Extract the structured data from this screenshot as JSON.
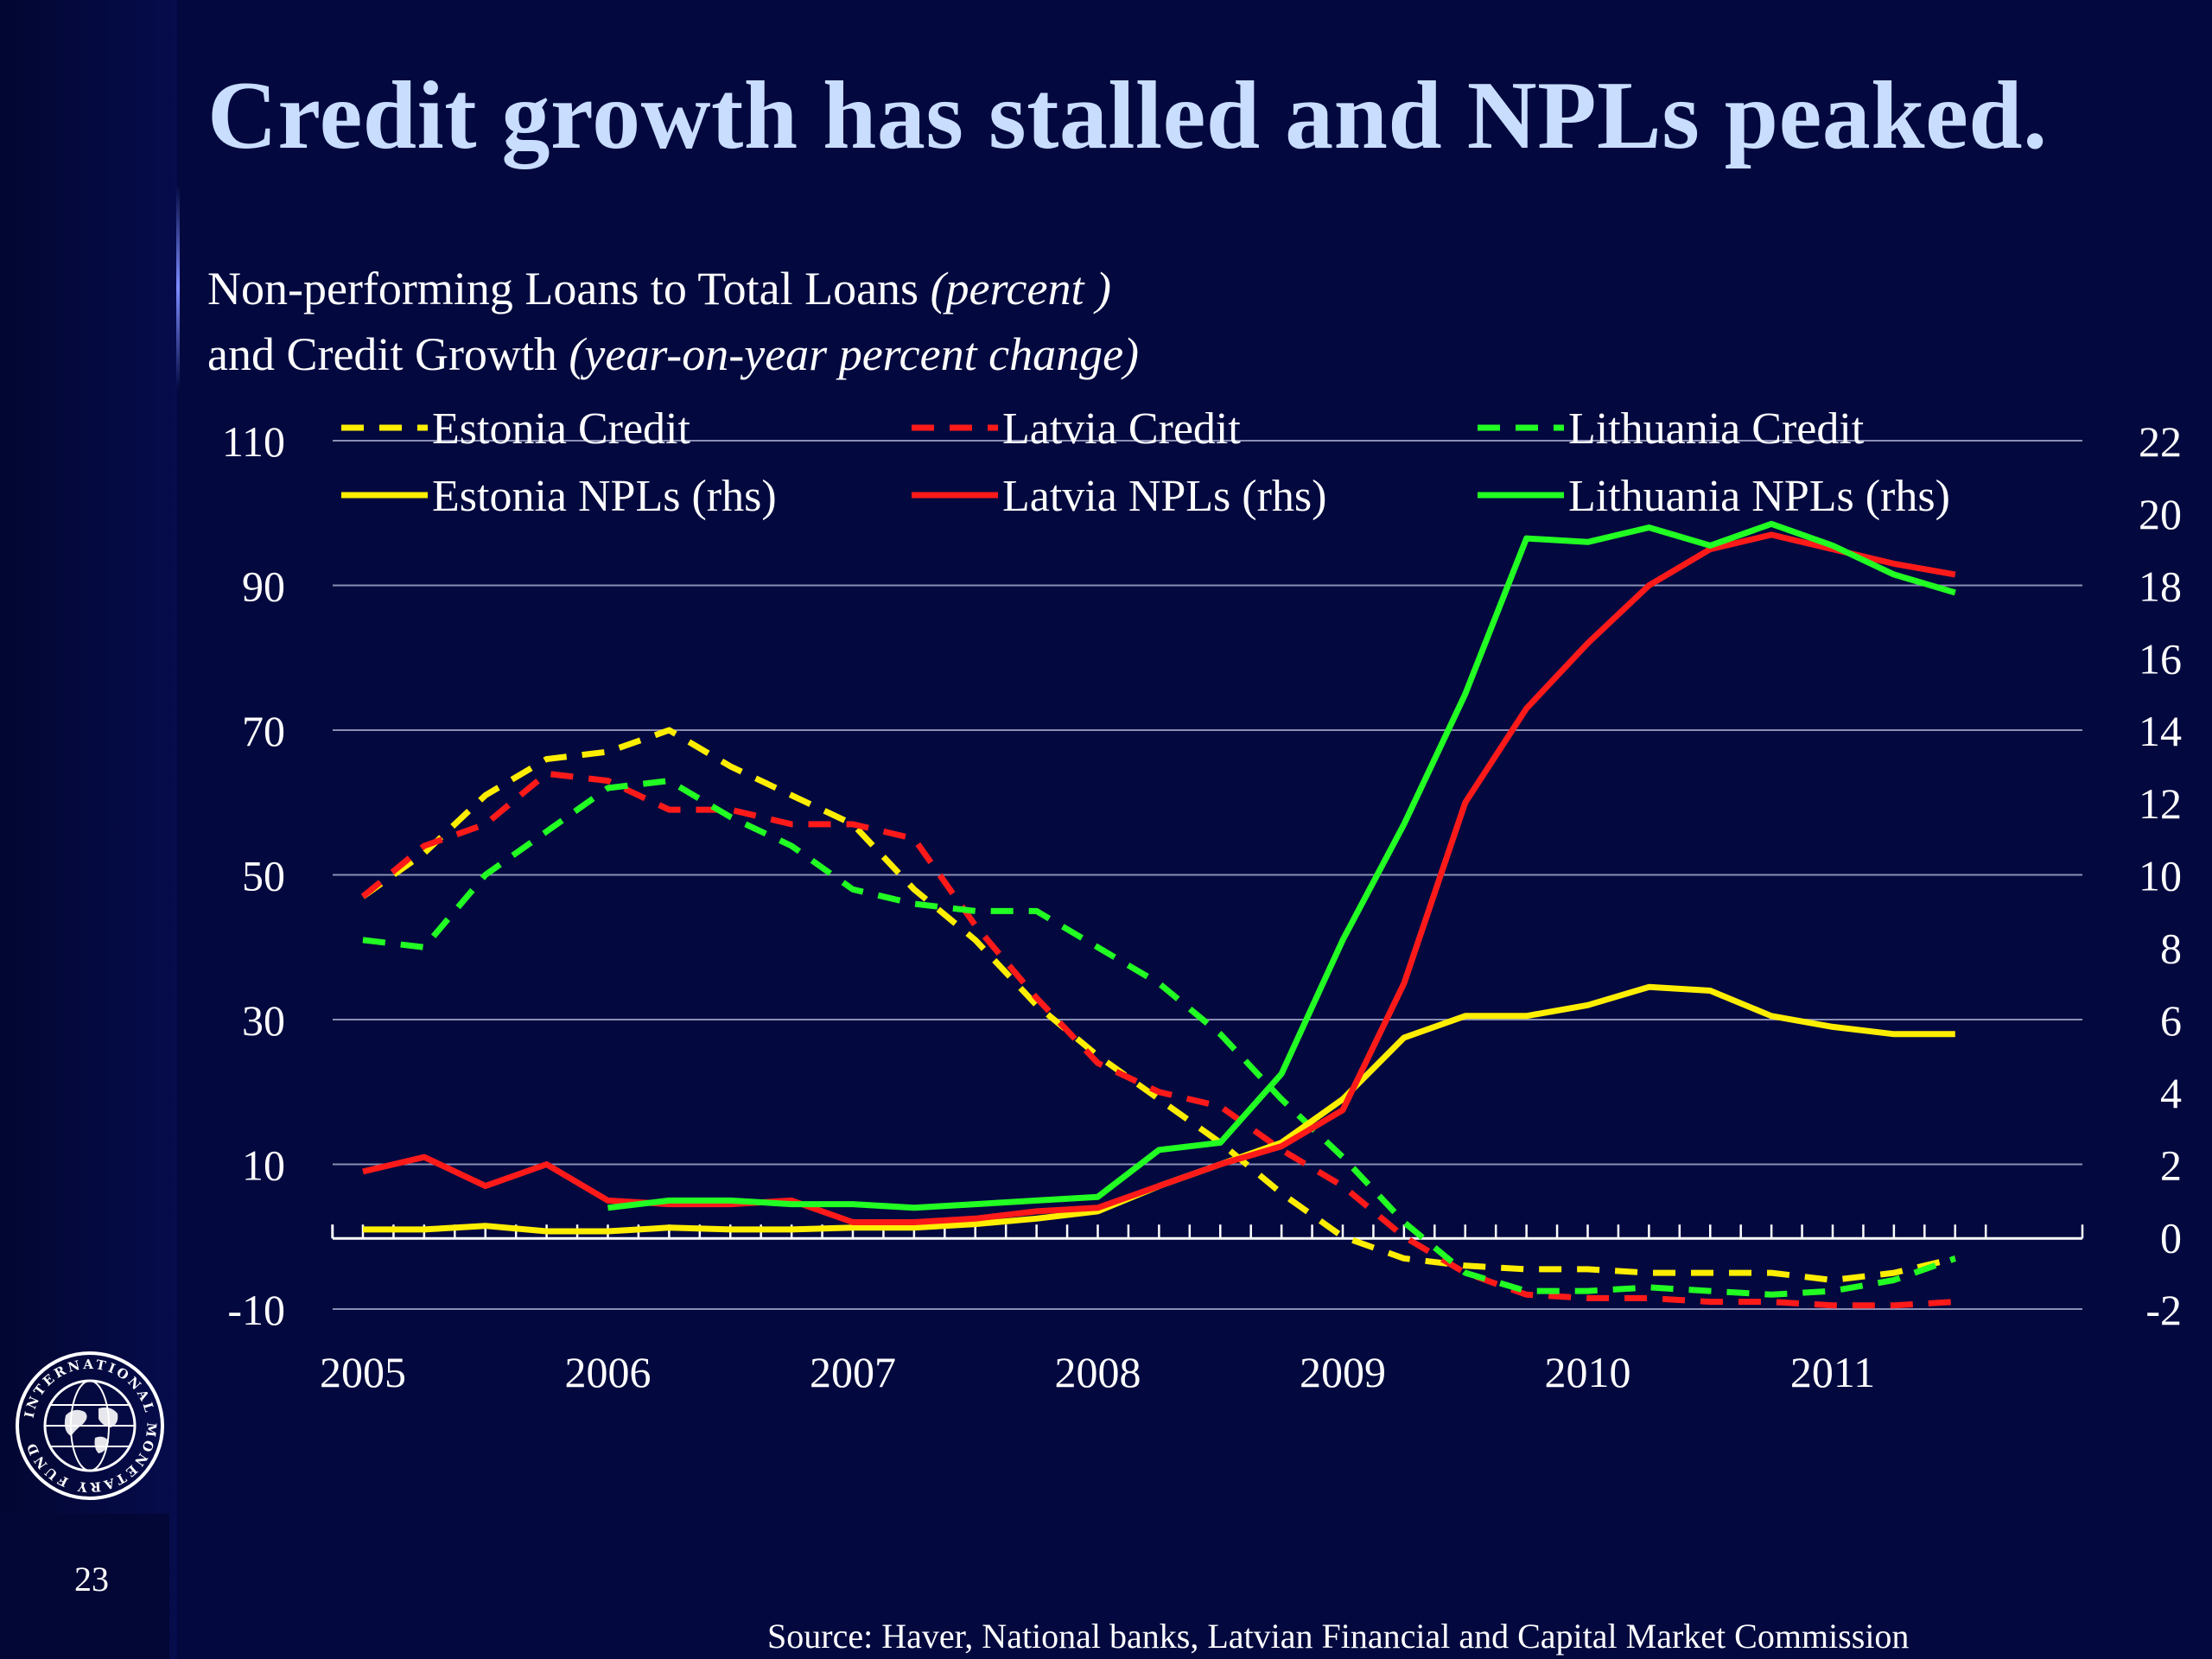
{
  "slide": {
    "title": "Credit growth has stalled and NPLs peaked.",
    "subtitle_line1": "Non-performing Loans to Total Loans",
    "subtitle_line1_unit": "(percent )",
    "subtitle_line2": "and Credit Growth",
    "subtitle_line2_unit": "(year-on-year percent change)",
    "source": "Source: Haver, National banks, Latvian Financial and Capital Market Commission",
    "page_number": "23",
    "logo_text": "INTERNATIONAL MONETARY FUND"
  },
  "colors": {
    "background": "#03093f",
    "title": "#c9ddff",
    "estonia": "#ffee00",
    "latvia": "#ff1a1a",
    "lithuania": "#22ff22",
    "grid": "#8a8fb3"
  },
  "chart_data": {
    "type": "line",
    "x_categories": [
      "2005",
      "2006",
      "2007",
      "2008",
      "2009",
      "2010",
      "2011"
    ],
    "x_range": [
      2005,
      2012
    ],
    "y_left": {
      "range": [
        -10,
        110
      ],
      "ticks": [
        -10,
        10,
        30,
        50,
        70,
        90,
        110
      ]
    },
    "y_right": {
      "range": [
        -2,
        22
      ],
      "ticks": [
        -2,
        0,
        2,
        4,
        6,
        8,
        10,
        12,
        14,
        16,
        18,
        20,
        22
      ]
    },
    "grid": true,
    "legend_position": "top",
    "series": [
      {
        "name": "Estonia Credit",
        "axis": "left",
        "style": "dashed",
        "color": "#ffee00",
        "x": [
          2005.0,
          2005.25,
          2005.5,
          2005.75,
          2006.0,
          2006.25,
          2006.5,
          2006.75,
          2007.0,
          2007.25,
          2007.5,
          2007.75,
          2008.0,
          2008.25,
          2008.5,
          2008.75,
          2009.0,
          2009.25,
          2009.5,
          2009.75,
          2010.0,
          2010.25,
          2010.5,
          2010.75,
          2011.0,
          2011.25,
          2011.5
        ],
        "y": [
          47,
          53,
          61,
          66,
          67,
          70,
          65,
          61,
          57,
          48,
          41,
          32,
          25,
          19,
          13,
          6,
          0,
          -3,
          -4,
          -4.5,
          -4.5,
          -5,
          -5,
          -5,
          -6,
          -5,
          -3
        ]
      },
      {
        "name": "Latvia Credit",
        "axis": "left",
        "style": "dashed",
        "color": "#ff1a1a",
        "x": [
          2005.0,
          2005.25,
          2005.5,
          2005.75,
          2006.0,
          2006.25,
          2006.5,
          2006.75,
          2007.0,
          2007.25,
          2007.5,
          2007.75,
          2008.0,
          2008.25,
          2008.5,
          2008.75,
          2009.0,
          2009.25,
          2009.5,
          2009.75,
          2010.0,
          2010.25,
          2010.5,
          2010.75,
          2011.0,
          2011.25,
          2011.5
        ],
        "y": [
          47,
          54,
          57,
          64,
          63,
          59,
          59,
          57,
          57,
          55,
          43,
          33,
          24,
          20,
          18,
          12,
          7,
          0,
          -5,
          -8,
          -8.5,
          -8.5,
          -9,
          -9,
          -9.5,
          -9.5,
          -9
        ]
      },
      {
        "name": "Lithuania Credit",
        "axis": "left",
        "style": "dashed",
        "color": "#22ff22",
        "x": [
          2005.0,
          2005.25,
          2005.5,
          2005.75,
          2006.0,
          2006.25,
          2006.5,
          2006.75,
          2007.0,
          2007.25,
          2007.5,
          2007.75,
          2008.0,
          2008.25,
          2008.5,
          2008.75,
          2009.0,
          2009.25,
          2009.5,
          2009.75,
          2010.0,
          2010.25,
          2010.5,
          2010.75,
          2011.0,
          2011.25,
          2011.5
        ],
        "y": [
          41,
          40,
          50,
          56,
          62,
          63,
          58,
          54,
          48,
          46,
          45,
          45,
          40,
          35,
          28,
          19,
          11,
          2,
          -5,
          -7.5,
          -7.5,
          -7,
          -7.5,
          -8,
          -7.5,
          -6,
          -3
        ]
      },
      {
        "name": "Estonia NPLs (rhs)",
        "axis": "right",
        "style": "solid",
        "color": "#ffee00",
        "x": [
          2005.0,
          2005.25,
          2005.5,
          2005.75,
          2006.0,
          2006.25,
          2006.5,
          2006.75,
          2007.0,
          2007.25,
          2007.5,
          2007.75,
          2008.0,
          2008.25,
          2008.5,
          2008.75,
          2009.0,
          2009.25,
          2009.5,
          2009.75,
          2010.0,
          2010.25,
          2010.5,
          2010.75,
          2011.0,
          2011.25,
          2011.5
        ],
        "y": [
          0.2,
          0.2,
          0.3,
          0.15,
          0.15,
          0.25,
          0.2,
          0.2,
          0.25,
          0.25,
          0.35,
          0.5,
          0.7,
          1.4,
          2.0,
          2.6,
          3.8,
          5.5,
          6.1,
          6.1,
          6.4,
          6.9,
          6.8,
          6.1,
          5.8,
          5.6,
          5.6
        ]
      },
      {
        "name": "Latvia NPLs (rhs)",
        "axis": "right",
        "style": "solid",
        "color": "#ff1a1a",
        "x": [
          2005.0,
          2005.25,
          2005.5,
          2005.75,
          2006.0,
          2006.25,
          2006.5,
          2006.75,
          2007.0,
          2007.25,
          2007.5,
          2007.75,
          2008.0,
          2008.25,
          2008.5,
          2008.75,
          2009.0,
          2009.25,
          2009.5,
          2009.75,
          2010.0,
          2010.25,
          2010.5,
          2010.75,
          2011.0,
          2011.25,
          2011.5
        ],
        "y": [
          1.8,
          2.2,
          1.4,
          2.0,
          1.0,
          0.9,
          0.9,
          1.0,
          0.4,
          0.4,
          0.5,
          0.7,
          0.8,
          1.4,
          2.0,
          2.5,
          3.5,
          7.0,
          12.0,
          14.6,
          16.4,
          18.0,
          19.0,
          19.4,
          19.0,
          18.6,
          18.3
        ]
      },
      {
        "name": "Lithuania NPLs (rhs)",
        "axis": "right",
        "style": "solid",
        "color": "#22ff22",
        "x": [
          2006.0,
          2006.25,
          2006.5,
          2006.75,
          2007.0,
          2007.25,
          2007.5,
          2007.75,
          2008.0,
          2008.25,
          2008.5,
          2008.75,
          2009.0,
          2009.25,
          2009.5,
          2009.75,
          2010.0,
          2010.25,
          2010.5,
          2010.75,
          2011.0,
          2011.25,
          2011.5
        ],
        "y": [
          0.8,
          1.0,
          1.0,
          0.9,
          0.9,
          0.8,
          0.9,
          1.0,
          1.1,
          2.4,
          2.6,
          4.5,
          8.2,
          11.4,
          15.0,
          19.3,
          19.2,
          19.6,
          19.1,
          19.7,
          19.1,
          18.3,
          17.8
        ]
      }
    ]
  }
}
